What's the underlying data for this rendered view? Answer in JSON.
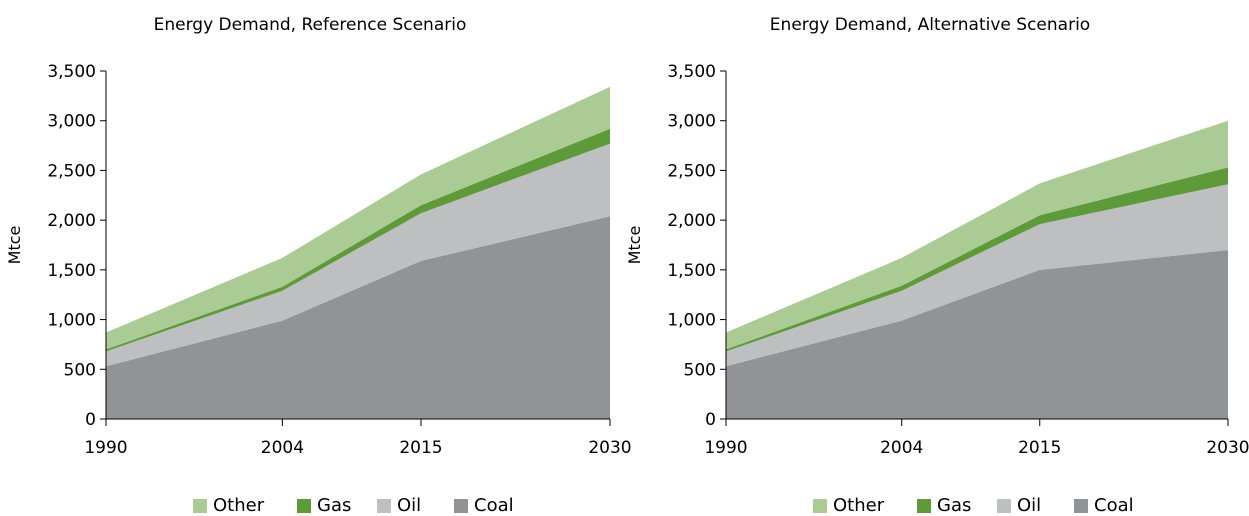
{
  "colors": {
    "Other": "#aacb94",
    "Gas": "#5e9a3a",
    "Oil": "#bebfc1",
    "Coal": "#929396"
  },
  "chart_data": [
    {
      "type": "area",
      "stacked": true,
      "title": "Energy Demand, Reference Scenario",
      "ylabel": "Mtce",
      "xlabel": "",
      "x": [
        1990,
        2004,
        2015,
        2030
      ],
      "x_tick_labels": [
        "1990",
        "2004",
        "2015",
        "2030"
      ],
      "y_tick_labels": [
        "0",
        "500",
        "1,000",
        "1,500",
        "2,000",
        "2,500",
        "3,000",
        "3,500"
      ],
      "ylim": [
        0,
        3500
      ],
      "grid": false,
      "legend_position": "bottom",
      "series": [
        {
          "name": "Coal",
          "values": [
            530,
            990,
            1590,
            2040
          ]
        },
        {
          "name": "Oil",
          "values": [
            150,
            300,
            480,
            730
          ]
        },
        {
          "name": "Gas",
          "values": [
            20,
            40,
            80,
            150
          ]
        },
        {
          "name": "Other",
          "values": [
            170,
            290,
            310,
            420
          ]
        }
      ]
    },
    {
      "type": "area",
      "stacked": true,
      "title": "Energy Demand, Alternative Scenario",
      "ylabel": "Mtce",
      "xlabel": "",
      "x": [
        1990,
        2004,
        2015,
        2030
      ],
      "x_tick_labels": [
        "1990",
        "2004",
        "2015",
        "2030"
      ],
      "y_tick_labels": [
        "0",
        "500",
        "1,000",
        "1,500",
        "2,000",
        "2,500",
        "3,000",
        "3,500"
      ],
      "ylim": [
        0,
        3500
      ],
      "grid": false,
      "legend_position": "bottom",
      "series": [
        {
          "name": "Coal",
          "values": [
            530,
            990,
            1500,
            1700
          ]
        },
        {
          "name": "Oil",
          "values": [
            150,
            300,
            460,
            660
          ]
        },
        {
          "name": "Gas",
          "values": [
            20,
            50,
            90,
            170
          ]
        },
        {
          "name": "Other",
          "values": [
            170,
            280,
            320,
            470
          ]
        }
      ]
    }
  ]
}
